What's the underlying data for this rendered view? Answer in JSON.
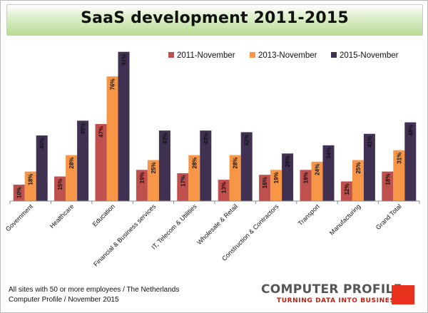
{
  "chart_data": {
    "type": "bar",
    "title": "SaaS development 2011-2015",
    "categories": [
      "Government",
      "Healthcare",
      "Education",
      "Financial & Business services",
      "IT, Telecom & Utilities",
      "Wholesale & Retail",
      "Construction & Contractors",
      "Transport",
      "Manufacturing",
      "Grand Total"
    ],
    "series": [
      {
        "name": "2011-November",
        "color": "#c0504d",
        "values": [
          10,
          15,
          47,
          19,
          17,
          13,
          16,
          19,
          12,
          18
        ]
      },
      {
        "name": "2013-November",
        "color": "#f79646",
        "values": [
          18,
          28,
          76,
          25,
          28,
          28,
          19,
          24,
          25,
          31
        ]
      },
      {
        "name": "2015-November",
        "color": "#403152",
        "values": [
          40,
          49,
          91,
          43,
          43,
          42,
          29,
          34,
          41,
          48
        ]
      }
    ],
    "value_suffix": "%",
    "ylim": [
      0,
      100
    ],
    "xlabel": "",
    "ylabel": "",
    "grid": false,
    "legend": "top-right",
    "data_labels": "rotated-inside-top"
  },
  "footer": {
    "line1": "All sites with 50 or more employees / The Netherlands",
    "line2": "Computer Profile / November 2015"
  },
  "logo": {
    "name": "COMPUTER PROFILE",
    "tagline": "TURNING DATA INTO BUSINESS",
    "accent": "#e8321e"
  },
  "colors": {
    "title_band_top": "#ffffff",
    "title_band_bottom": "#b7dd93",
    "axis": "#8c8c8c"
  }
}
